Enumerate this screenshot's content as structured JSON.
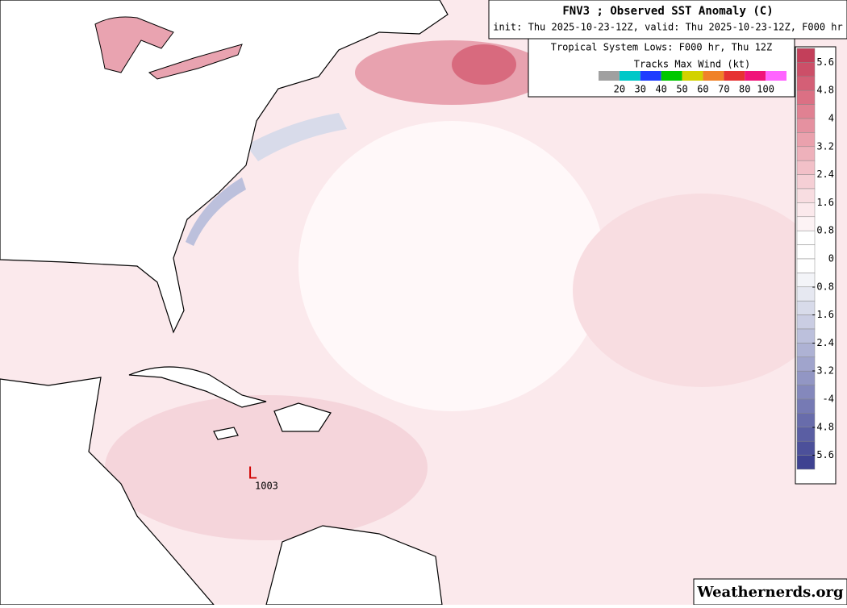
{
  "header": {
    "title": "FNV3 ; Observed SST Anomaly (C)",
    "init": "init: Thu 2025-10-23-12Z, valid: Thu 2025-10-23-12Z, F000 hr"
  },
  "tropical": {
    "label": "Tropical System Lows: F000 hr, Thu 12Z",
    "tracks_label": "Tracks Max Wind (kt)",
    "wind_colors": [
      "#a0a0a0",
      "#00c8c8",
      "#1e3cff",
      "#00c800",
      "#d2d200",
      "#f08228",
      "#e63232",
      "#f0147a",
      "#ff64ff"
    ],
    "wind_ticks": [
      20,
      30,
      40,
      50,
      60,
      70,
      80,
      100
    ]
  },
  "colorbar": {
    "ticks": [
      5.6,
      4.8,
      4,
      3.2,
      2.4,
      1.6,
      0.8,
      0,
      -0.8,
      -1.6,
      -2.4,
      -3.2,
      -4,
      -4.8,
      -5.6
    ],
    "colors": [
      "#c33f5a",
      "#cc4f68",
      "#d45f76",
      "#db7084",
      "#e08192",
      "#e591a0",
      "#eaa1ad",
      "#eeb1bb",
      "#f2c0c8",
      "#f5cfd5",
      "#f8dde1",
      "#fbe9ec",
      "#fdf3f5",
      "#ffffff",
      "#ffffff",
      "#ffffff",
      "#f3f4f8",
      "#e6e8f1",
      "#d8dbea",
      "#cacde3",
      "#bcc0dc",
      "#aeb2d4",
      "#a0a4cc",
      "#9296c4",
      "#8488bc",
      "#767ab4",
      "#686cab",
      "#5a5ea3",
      "#4c509a",
      "#3e4291"
    ]
  },
  "lows": [
    {
      "symbol": "L",
      "pressure": 1003
    }
  ],
  "watermark": "Weathernerds.org"
}
